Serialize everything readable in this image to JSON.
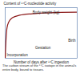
{
  "chart_data": {
    "type": "line",
    "y_label": "Content of ¹⁴C-nucleotide activity",
    "x_label": "Number of days after ¹⁴C ingestion",
    "x": [
      0,
      5,
      10,
      20,
      40,
      80,
      150,
      250,
      400
    ],
    "values": [
      0,
      40,
      60,
      72,
      80,
      85,
      88,
      90,
      91
    ],
    "color": "#8b1a1a",
    "xlim": [
      0,
      400
    ],
    "ylim": [
      0,
      100
    ],
    "tick_labels": false,
    "annotations": [
      "Body weight (kg)",
      "Incorporation",
      "Gestation",
      "Birth"
    ],
    "caption": "The carbon stream of the ¹⁴C isotope in the animal's entire body, bound to tissues."
  }
}
